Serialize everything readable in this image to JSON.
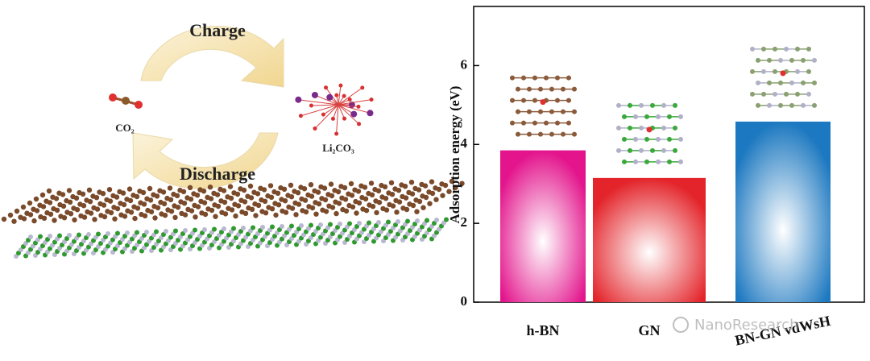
{
  "schematic": {
    "charge": "Charge",
    "discharge": "Discharge",
    "co2": "CO₂",
    "li2co3": "Li₂CO₃"
  },
  "chart_data": {
    "type": "bar",
    "y_label": "Adsorption energy (eV)",
    "categories": [
      "h-BN",
      "GN",
      "BN-GN vdWsH"
    ],
    "values": [
      3.85,
      3.15,
      4.58
    ],
    "colors": [
      "#e3148c",
      "#e3252b",
      "#1c78c0"
    ],
    "ylim": [
      0,
      7.5
    ],
    "yticks": [
      0,
      2,
      4,
      6
    ]
  },
  "watermark": "NanoResearch"
}
